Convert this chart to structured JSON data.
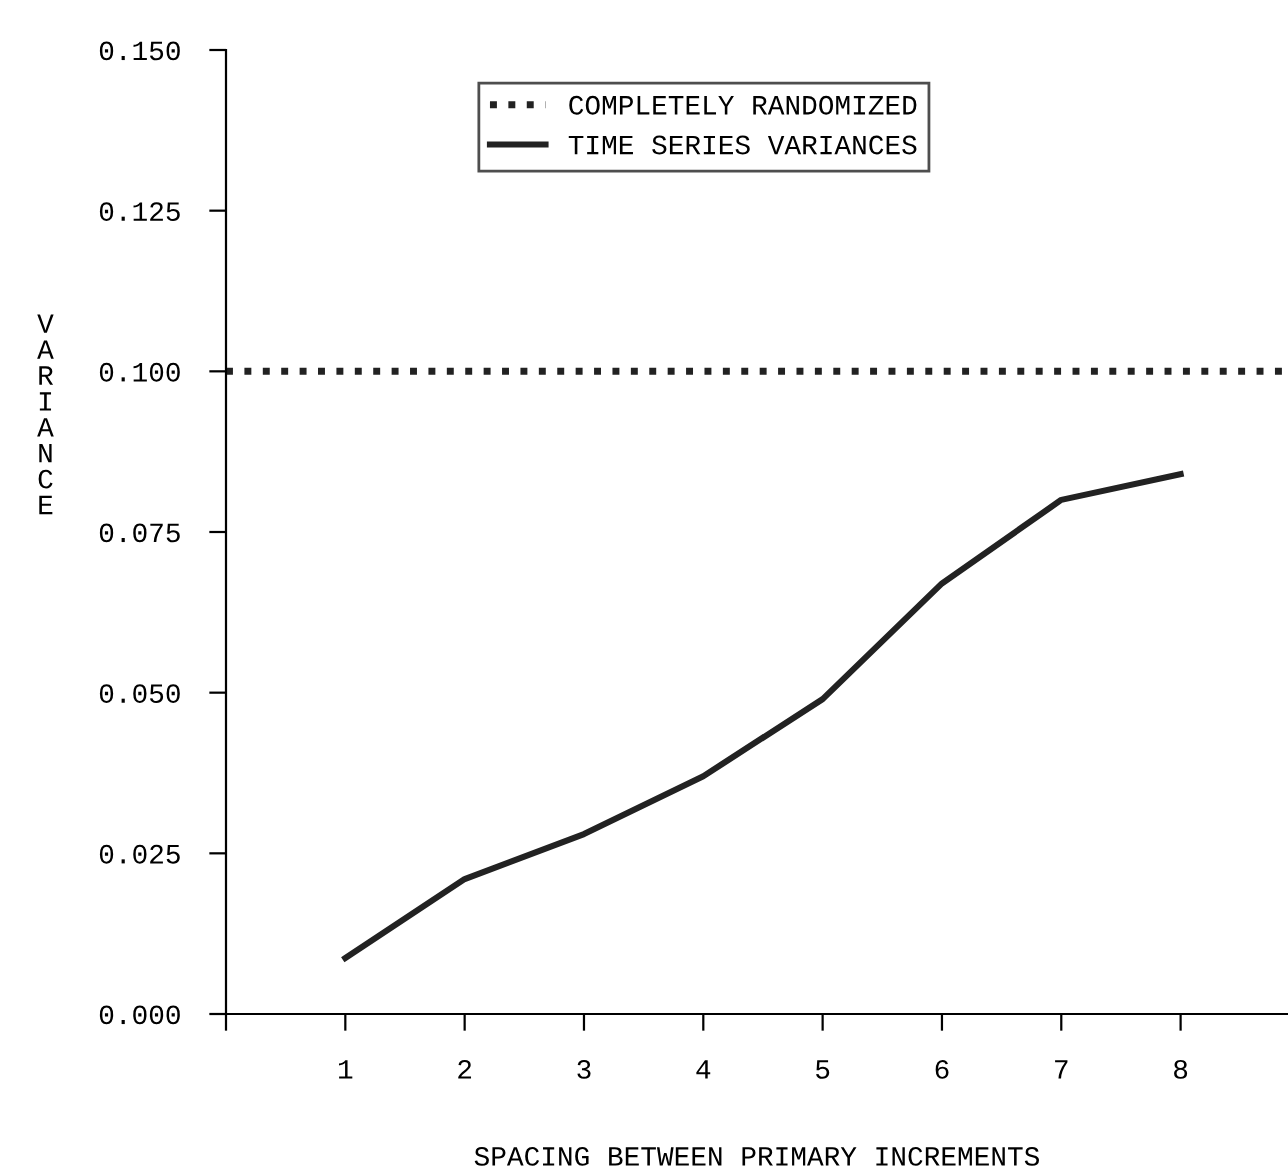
{
  "chart_data": {
    "type": "line",
    "xlabel": "SPACING BETWEEN PRIMARY INCREMENTS",
    "ylabel": "VARIANCE",
    "x": [
      1,
      2,
      3,
      4,
      5,
      6,
      7,
      8
    ],
    "series": [
      {
        "name": "COMPLETELY RANDOMIZED",
        "color": "#222222",
        "x": [
          0,
          8.9
        ],
        "values": [
          0.1,
          0.1
        ],
        "line_style": "dotted"
      },
      {
        "name": "TIME SERIES VARIANCES",
        "color": "#222222",
        "values": [
          0.0087,
          0.021,
          0.028,
          0.037,
          0.049,
          0.067,
          0.08,
          0.084
        ],
        "line_style": "solid"
      }
    ],
    "xlim": [
      0,
      8.9
    ],
    "xticks": [
      {
        "value": 0,
        "label": null
      },
      1,
      2,
      3,
      4,
      5,
      6,
      7,
      8
    ],
    "ylim": [
      0,
      0.15
    ],
    "yticks": [
      {
        "value": 0,
        "label": "0.000"
      },
      {
        "value": 0.025,
        "label": "0.025"
      },
      {
        "value": 0.05,
        "label": "0.050"
      },
      {
        "value": 0.075,
        "label": "0.075"
      },
      {
        "value": 0.1,
        "label": "0.100"
      },
      {
        "value": 0.125,
        "label": "0.125"
      },
      {
        "value": 0.15,
        "label": "0.150"
      }
    ],
    "grid": false,
    "legend": "top",
    "marker": "none"
  }
}
